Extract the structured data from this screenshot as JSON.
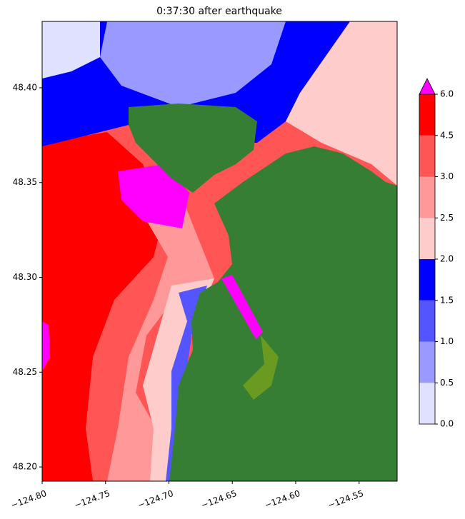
{
  "chart_data": {
    "type": "heatmap",
    "title": "0:37:30 after earthquake",
    "xlim": [
      -124.8,
      -124.52
    ],
    "ylim": [
      48.1925,
      48.435
    ],
    "xticks": [
      {
        "value": -124.8,
        "label": "−124.80"
      },
      {
        "value": -124.75,
        "label": "−124.75"
      },
      {
        "value": -124.7,
        "label": "−124.70"
      },
      {
        "value": -124.65,
        "label": "−124.65"
      },
      {
        "value": -124.6,
        "label": "−124.60"
      },
      {
        "value": -124.55,
        "label": "−124.55"
      }
    ],
    "yticks": [
      {
        "value": 48.2,
        "label": "48.20"
      },
      {
        "value": 48.25,
        "label": "48.25"
      },
      {
        "value": 48.3,
        "label": "48.30"
      },
      {
        "value": 48.35,
        "label": "48.35"
      },
      {
        "value": 48.4,
        "label": "48.40"
      }
    ],
    "colorbar": {
      "ticks": [
        {
          "value": 0,
          "label": "0.0"
        },
        {
          "value": 0.5,
          "label": "0.5"
        },
        {
          "value": 1,
          "label": "1.0"
        },
        {
          "value": 1.5,
          "label": "1.5"
        },
        {
          "value": 2,
          "label": "2.0"
        },
        {
          "value": 2.5,
          "label": "2.5"
        },
        {
          "value": 3,
          "label": "3.0"
        },
        {
          "value": 4.5,
          "label": "4.5"
        },
        {
          "value": 6,
          "label": "6.0"
        }
      ],
      "colors": [
        "#e0e0ff",
        "#9999ff",
        "#5555ff",
        "#0000ff",
        "#ffcccc",
        "#ff9999",
        "#ff5555",
        "#ff0000"
      ],
      "extend_color": "#ff00ff"
    }
  }
}
